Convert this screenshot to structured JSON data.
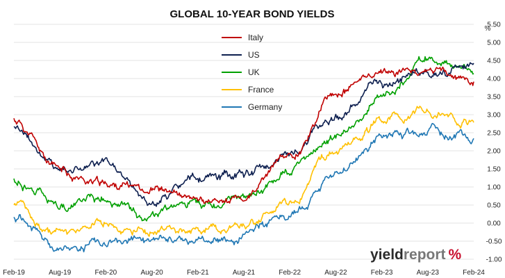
{
  "chart_data": {
    "type": "line",
    "title": "GLOBAL 10-YEAR BOND YIELDS",
    "ylabel": "%",
    "xlabel": "",
    "ylim": [
      -1.0,
      5.5
    ],
    "yticks": [
      "-1.00",
      "-0.50",
      "0.00",
      "0.50",
      "1.00",
      "1.50",
      "2.00",
      "2.50",
      "3.00",
      "3.50",
      "4.00",
      "4.50",
      "5.00",
      "5.50"
    ],
    "x": [
      "Feb-19",
      "Aug-19",
      "Feb-20",
      "Aug-20",
      "Feb-21",
      "Aug-21",
      "Feb-22",
      "Aug-22",
      "Feb-23",
      "Aug-23",
      "Feb-24"
    ],
    "grid": true,
    "legend_position": "top-center",
    "series": [
      {
        "name": "Italy",
        "color": "#c00000",
        "values": [
          2.85,
          1.4,
          1.05,
          1.0,
          0.55,
          0.65,
          1.85,
          3.6,
          4.2,
          4.2,
          3.85
        ]
      },
      {
        "name": "US",
        "color": "#0d1f4f",
        "values": [
          2.7,
          1.55,
          1.6,
          0.6,
          1.2,
          1.3,
          1.9,
          3.0,
          3.85,
          4.2,
          4.25
        ]
      },
      {
        "name": "UK",
        "color": "#00a000",
        "values": [
          1.2,
          0.5,
          0.6,
          0.2,
          0.55,
          0.6,
          1.45,
          2.35,
          3.5,
          4.5,
          4.25
        ]
      },
      {
        "name": "France",
        "color": "#ffc000",
        "values": [
          0.55,
          -0.35,
          -0.05,
          -0.2,
          -0.25,
          -0.05,
          0.6,
          2.05,
          2.85,
          3.1,
          2.85
        ]
      },
      {
        "name": "Germany",
        "color": "#1f77b4",
        "values": [
          0.15,
          -0.7,
          -0.45,
          -0.5,
          -0.5,
          -0.4,
          0.25,
          1.4,
          2.35,
          2.6,
          2.35
        ]
      }
    ]
  },
  "watermark": {
    "part1": "yield",
    "part2": "report",
    "symbol": "%"
  }
}
